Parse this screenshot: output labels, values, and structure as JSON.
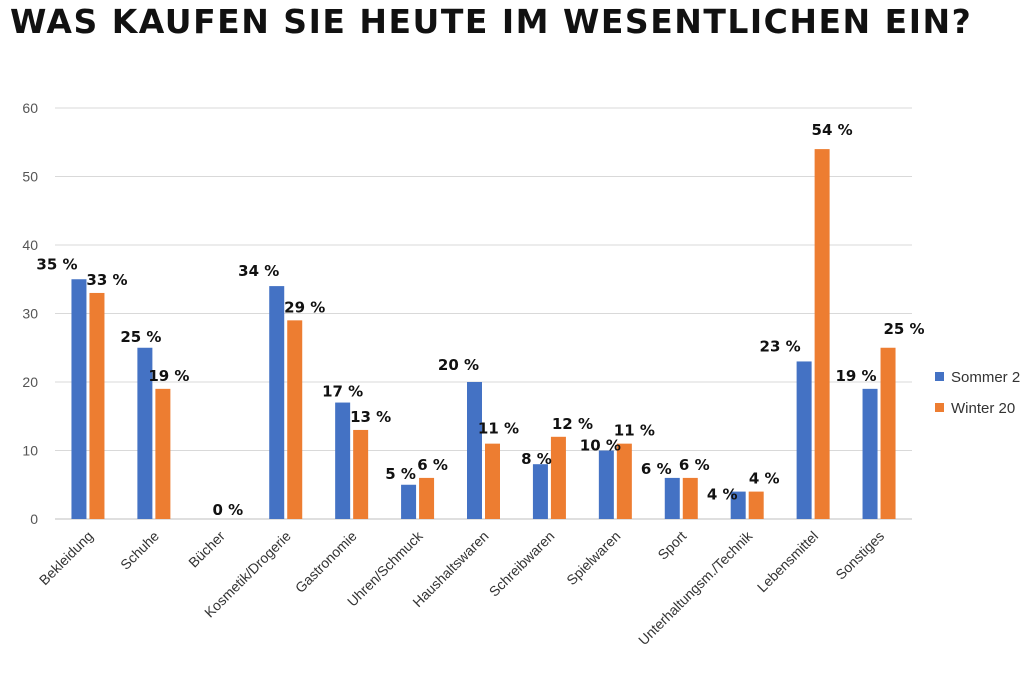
{
  "chart_data": {
    "type": "bar",
    "title": "WAS KAUFEN SIE HEUTE IM WESENTLICHEN EIN?",
    "categories": [
      "Bekleidung",
      "Schuhe",
      "Bücher",
      "Kosmetik/Drogerie",
      "Gastronomie",
      "Uhren/Schmuck",
      "Haushaltswaren",
      "Schreibwaren",
      "Spielwaren",
      "Sport",
      "Unterhaltungsm./Technik",
      "Lebensmittel",
      "Sonstiges"
    ],
    "series": [
      {
        "name": "Sommer 2",
        "color": "#4472C4",
        "values": [
          35,
          25,
          null,
          34,
          17,
          5,
          20,
          8,
          10,
          6,
          4,
          23,
          19
        ],
        "labels": [
          "35 %",
          "25 %",
          "",
          "34 %",
          "17 %",
          "5 %",
          "20 %",
          "8 %",
          "10 %",
          "6 %",
          "4 %",
          "23 %",
          "19 %"
        ]
      },
      {
        "name": "Winter 20",
        "color": "#ED7D31",
        "values": [
          33,
          19,
          null,
          29,
          13,
          6,
          11,
          12,
          11,
          6,
          4,
          54,
          25
        ],
        "labels": [
          "33 %",
          "19 %",
          "",
          "29 %",
          "13 %",
          "6 %",
          "11 %",
          "12 %",
          "11 %",
          "6 %",
          "4 %",
          "54 %",
          "25 %"
        ]
      }
    ],
    "extra_labels": [
      {
        "category": "Bücher",
        "text": "0 %"
      }
    ],
    "yticks": [
      "0",
      "10",
      "20",
      "30",
      "40",
      "50",
      "60"
    ],
    "ylim": [
      0,
      60
    ],
    "grid": true,
    "legend_position": "right",
    "xlabel": "",
    "ylabel": ""
  }
}
